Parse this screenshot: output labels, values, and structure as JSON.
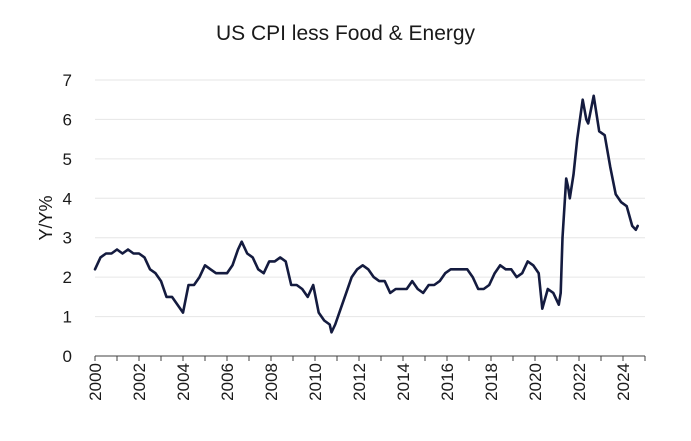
{
  "chart_data": {
    "type": "line",
    "title": "US CPI less Food & Energy",
    "xlabel": "",
    "ylabel": "Y/Y%",
    "ylim": [
      0,
      7
    ],
    "yticks": [
      0,
      1,
      2,
      3,
      4,
      5,
      6,
      7
    ],
    "xlim": [
      "2000-01",
      "2025-01"
    ],
    "xticks": [
      "2000",
      "2002",
      "2004",
      "2006",
      "2008",
      "2010",
      "2012",
      "2014",
      "2016",
      "2018",
      "2020",
      "2022",
      "2024"
    ],
    "grid": "horizontal",
    "colors": {
      "line": "#141b3f",
      "grid": "#e6e6e6",
      "axis": "#404040"
    },
    "series": [
      {
        "x": [
          "2000-01",
          "2000-04",
          "2000-07",
          "2000-10",
          "2001-01",
          "2001-04",
          "2001-07",
          "2001-10",
          "2002-01",
          "2002-04",
          "2002-07",
          "2002-10",
          "2003-01",
          "2003-04",
          "2003-07",
          "2003-10",
          "2004-01",
          "2004-04",
          "2004-07",
          "2004-10",
          "2005-01",
          "2005-04",
          "2005-07",
          "2005-10",
          "2006-01",
          "2006-04",
          "2006-07",
          "2006-09",
          "2006-12",
          "2007-03",
          "2007-06",
          "2007-09",
          "2007-12",
          "2008-03",
          "2008-06",
          "2008-09",
          "2008-12",
          "2009-03",
          "2009-06",
          "2009-09",
          "2009-12",
          "2010-03",
          "2010-06",
          "2010-09",
          "2010-10",
          "2010-12",
          "2011-03",
          "2011-06",
          "2011-09",
          "2011-12",
          "2012-03",
          "2012-06",
          "2012-09",
          "2012-12",
          "2013-03",
          "2013-06",
          "2013-09",
          "2013-12",
          "2014-03",
          "2014-06",
          "2014-09",
          "2014-12",
          "2015-03",
          "2015-06",
          "2015-09",
          "2015-12",
          "2016-03",
          "2016-06",
          "2016-09",
          "2016-12",
          "2017-03",
          "2017-06",
          "2017-09",
          "2017-12",
          "2018-03",
          "2018-06",
          "2018-09",
          "2018-12",
          "2019-03",
          "2019-06",
          "2019-09",
          "2019-12",
          "2020-03",
          "2020-05",
          "2020-08",
          "2020-11",
          "2021-02",
          "2021-03",
          "2021-04",
          "2021-06",
          "2021-07",
          "2021-08",
          "2021-10",
          "2021-12",
          "2022-03",
          "2022-05",
          "2022-06",
          "2022-09",
          "2022-12",
          "2023-03",
          "2023-06",
          "2023-09",
          "2023-12",
          "2024-03",
          "2024-06",
          "2024-08",
          "2024-09"
        ],
        "values": [
          2.2,
          2.5,
          2.6,
          2.6,
          2.7,
          2.6,
          2.7,
          2.6,
          2.6,
          2.5,
          2.2,
          2.1,
          1.9,
          1.5,
          1.5,
          1.3,
          1.1,
          1.8,
          1.8,
          2.0,
          2.3,
          2.2,
          2.1,
          2.1,
          2.1,
          2.3,
          2.7,
          2.9,
          2.6,
          2.5,
          2.2,
          2.1,
          2.4,
          2.4,
          2.5,
          2.4,
          1.8,
          1.8,
          1.7,
          1.5,
          1.8,
          1.1,
          0.9,
          0.8,
          0.6,
          0.8,
          1.2,
          1.6,
          2.0,
          2.2,
          2.3,
          2.2,
          2.0,
          1.9,
          1.9,
          1.6,
          1.7,
          1.7,
          1.7,
          1.9,
          1.7,
          1.6,
          1.8,
          1.8,
          1.9,
          2.1,
          2.2,
          2.2,
          2.2,
          2.2,
          2.0,
          1.7,
          1.7,
          1.8,
          2.1,
          2.3,
          2.2,
          2.2,
          2.0,
          2.1,
          2.4,
          2.3,
          2.1,
          1.2,
          1.7,
          1.6,
          1.3,
          1.6,
          3.0,
          4.5,
          4.3,
          4.0,
          4.6,
          5.5,
          6.5,
          6.0,
          5.9,
          6.6,
          5.7,
          5.6,
          4.8,
          4.1,
          3.9,
          3.8,
          3.3,
          3.2,
          3.3
        ]
      }
    ]
  }
}
